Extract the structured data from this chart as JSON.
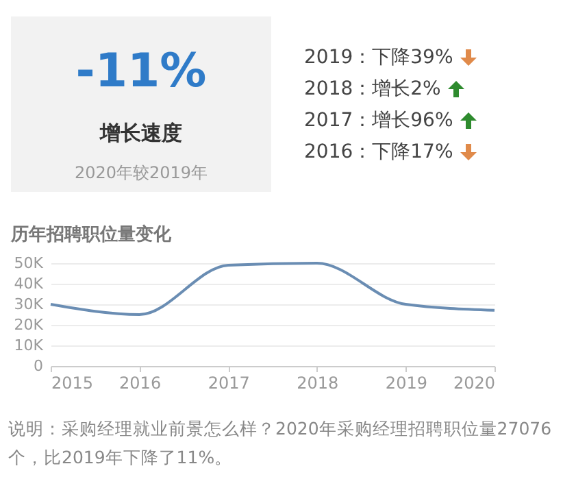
{
  "chart_data": [
    {
      "type": "other",
      "title": "-11%",
      "subtitle": "增长速度",
      "annotations": [
        "2020年较2019年",
        "2019：下降39%",
        "2018：增长2%",
        "2017：增长96%",
        "2016：下降17%"
      ]
    },
    {
      "type": "line",
      "title": "历年招聘职位量变化",
      "x": [
        2015,
        2016,
        2017,
        2018,
        2019,
        2020
      ],
      "series": [
        {
          "color": "#6a8db3",
          "values": [
            30000,
            25000,
            49000,
            50000,
            30000,
            27076
          ]
        }
      ],
      "xlim": [
        2015,
        2020
      ],
      "xticks": [
        2015,
        2016,
        2017,
        2018,
        2019,
        2020
      ],
      "ylim": [
        0,
        50000
      ],
      "yticks": [
        0,
        {
          "value": 10000,
          "label": "10K"
        },
        {
          "value": 20000,
          "label": "20K"
        },
        {
          "value": 30000,
          "label": "30K"
        },
        {
          "value": 40000,
          "label": "40K"
        },
        {
          "value": 50000,
          "label": "50K"
        }
      ],
      "grid": "y",
      "legend": false,
      "marker": "none",
      "line_style": "solid",
      "annotations": [
        "说明：采购经理就业前景怎么样？2020年采购经理招聘职位量27076个，比2019年下降了11%。"
      ]
    }
  ]
}
